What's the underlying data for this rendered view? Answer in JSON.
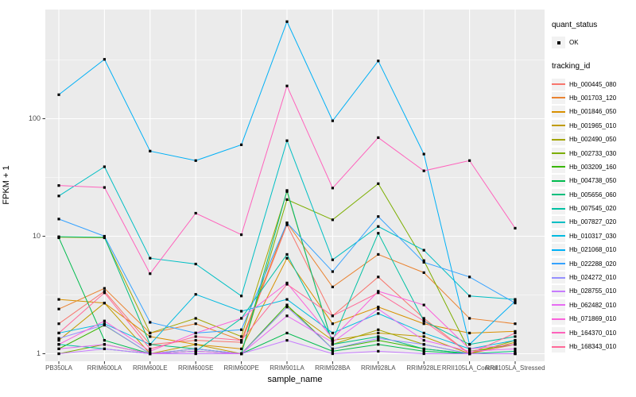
{
  "figure": {
    "y_axis_title": "FPKM + 1",
    "x_axis_title": "sample_name"
  },
  "legend": {
    "quant_status": {
      "title": "quant_status",
      "item_label": "OK"
    },
    "tracking_id": {
      "title": "tracking_id"
    }
  },
  "chart_data": {
    "type": "line",
    "title": "",
    "xlabel": "sample_name",
    "ylabel": "FPKM + 1",
    "yscale": "log",
    "ylim": [
      0.86,
      850
    ],
    "grid": true,
    "legend_position": "right",
    "point_shape": "filled-square (quant_status = OK)",
    "categories": [
      "PB350LA",
      "RRIM600LA",
      "RRIM600LE",
      "RRIM600SE",
      "RRIM600PE",
      "RRIM901LA",
      "RRIM928BA",
      "RRIM928LA",
      "RRIM928LE",
      "RRII105LA_Control",
      "RRII105LA_Stressed"
    ],
    "y_ticks": [
      {
        "label": "1",
        "value": 1
      },
      {
        "label": "10",
        "value": 10
      },
      {
        "label": "100",
        "value": 100
      }
    ],
    "y_minor_gridlines": [
      3.162,
      31.62,
      316.2
    ],
    "colors": {
      "panel_bg": "#EBEBEB",
      "grid": "#FFFFFF",
      "axis_text": "#4D4D4D",
      "tick_mark": "#333333",
      "point": "#000000",
      "legend_key_bg": "#F2F2F2"
    },
    "series": [
      {
        "name": "Hb_000445_080",
        "color": "#F8766D",
        "values": [
          1.8,
          3.4,
          1.2,
          1.3,
          1.25,
          12.5,
          2.1,
          4.5,
          2.0,
          1.0,
          1.2
        ]
      },
      {
        "name": "Hb_001703_120",
        "color": "#EA8331",
        "values": [
          2.4,
          3.6,
          1.5,
          1.8,
          1.3,
          13,
          3.7,
          7.0,
          4.9,
          2.0,
          1.8
        ]
      },
      {
        "name": "Hb_001846_050",
        "color": "#D89000",
        "values": [
          2.9,
          2.7,
          1.4,
          1.2,
          1.1,
          6.5,
          1.8,
          2.5,
          1.8,
          1.5,
          1.55
        ]
      },
      {
        "name": "Hb_001965_010",
        "color": "#C09B00",
        "values": [
          1.3,
          2.7,
          1.0,
          1.2,
          1.0,
          2.5,
          1.3,
          1.5,
          1.4,
          1.0,
          1.25
        ]
      },
      {
        "name": "Hb_002490_050",
        "color": "#A3A500",
        "values": [
          9.8,
          9.7,
          1.5,
          2.0,
          1.4,
          24,
          1.2,
          1.6,
          1.2,
          1.0,
          1.3
        ]
      },
      {
        "name": "Hb_002733_030",
        "color": "#7CAE00",
        "values": [
          1.0,
          1.2,
          1.0,
          1.1,
          1.0,
          20.5,
          13.8,
          28,
          6.2,
          1.05,
          1.2
        ]
      },
      {
        "name": "Hb_003209_160",
        "color": "#39B600",
        "values": [
          1.1,
          1.75,
          1.0,
          1.0,
          1.0,
          2.6,
          1.1,
          1.3,
          1.1,
          1.0,
          1.0
        ]
      },
      {
        "name": "Hb_004738_050",
        "color": "#00BB4E",
        "values": [
          9.7,
          1.3,
          1.0,
          1.05,
          1.0,
          1.5,
          1.05,
          1.2,
          1.05,
          1.0,
          1.0
        ]
      },
      {
        "name": "Hb_005656_060",
        "color": "#00BF7D",
        "values": [
          9.9,
          9.8,
          1.2,
          1.1,
          1.0,
          24.5,
          1.2,
          1.4,
          1.1,
          1.0,
          1.05
        ]
      },
      {
        "name": "Hb_007545_020",
        "color": "#00C1A3",
        "values": [
          1.2,
          1.1,
          1.0,
          1.05,
          2.0,
          7.0,
          1.3,
          10.6,
          1.9,
          1.2,
          1.4
        ]
      },
      {
        "name": "Hb_007827_020",
        "color": "#00BFC4",
        "values": [
          22,
          39,
          6.5,
          5.8,
          3.1,
          65,
          6.3,
          12.1,
          7.6,
          3.1,
          2.9
        ]
      },
      {
        "name": "Hb_010317_030",
        "color": "#00BAE0",
        "values": [
          1.5,
          1.8,
          1.2,
          3.2,
          2.3,
          2.9,
          1.5,
          2.2,
          1.5,
          1.1,
          1.3
        ]
      },
      {
        "name": "Hb_021068_010",
        "color": "#00B0F6",
        "values": [
          160,
          320,
          53,
          44,
          60,
          670,
          96,
          310,
          50,
          1.2,
          2.8
        ]
      },
      {
        "name": "Hb_022288_020",
        "color": "#35A2FF",
        "values": [
          14,
          10,
          1.85,
          1.5,
          1.6,
          13,
          5.0,
          14.7,
          6.0,
          4.5,
          2.7
        ]
      },
      {
        "name": "Hb_024272_010",
        "color": "#9590FF",
        "values": [
          1.35,
          1.76,
          1.0,
          1.1,
          1.0,
          2.5,
          1.1,
          1.35,
          1.2,
          1.0,
          1.0
        ]
      },
      {
        "name": "Hb_028755_010",
        "color": "#C77CFF",
        "values": [
          1.0,
          1.1,
          1.0,
          1.0,
          1.0,
          1.3,
          1.0,
          1.05,
          1.0,
          1.0,
          1.0
        ]
      },
      {
        "name": "Hb_062482_010",
        "color": "#E76BF3",
        "values": [
          1.1,
          1.2,
          1.0,
          1.05,
          1.0,
          2.1,
          1.25,
          2.4,
          1.3,
          1.05,
          1.1
        ]
      },
      {
        "name": "Hb_071869_010",
        "color": "#FA62DB",
        "values": [
          1.2,
          1.9,
          1.05,
          1.5,
          2.0,
          4.0,
          1.35,
          3.4,
          2.6,
          1.1,
          1.2
        ]
      },
      {
        "name": "Hb_164370_010",
        "color": "#FF62BC",
        "values": [
          27,
          26,
          4.8,
          15.7,
          10.3,
          190,
          25.7,
          69,
          36,
          44,
          11.7
        ]
      },
      {
        "name": "Hb_168343_010",
        "color": "#FF6A98",
        "values": [
          1.5,
          3.3,
          1.1,
          1.4,
          1.3,
          3.9,
          2.1,
          3.3,
          1.9,
          1.0,
          1.5
        ]
      }
    ]
  }
}
